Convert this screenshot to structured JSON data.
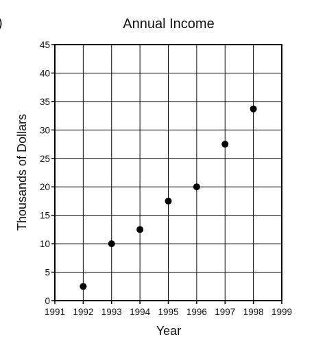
{
  "partial_label": ")",
  "chart_data": {
    "type": "scatter",
    "title": "Annual Income",
    "xlabel": "Year",
    "ylabel": "Thousands of Dollars",
    "xlim": [
      1991,
      1999
    ],
    "ylim": [
      0,
      45
    ],
    "xticks": [
      1991,
      1992,
      1993,
      1994,
      1995,
      1996,
      1997,
      1998,
      1999
    ],
    "yticks": [
      0,
      5,
      10,
      15,
      20,
      25,
      30,
      35,
      40,
      45
    ],
    "grid": true,
    "x": [
      1992,
      1993,
      1994,
      1995,
      1996,
      1997,
      1998
    ],
    "y": [
      2.5,
      10,
      12.5,
      17.5,
      20,
      27.5,
      33.7
    ],
    "marker_color": "#000000"
  }
}
